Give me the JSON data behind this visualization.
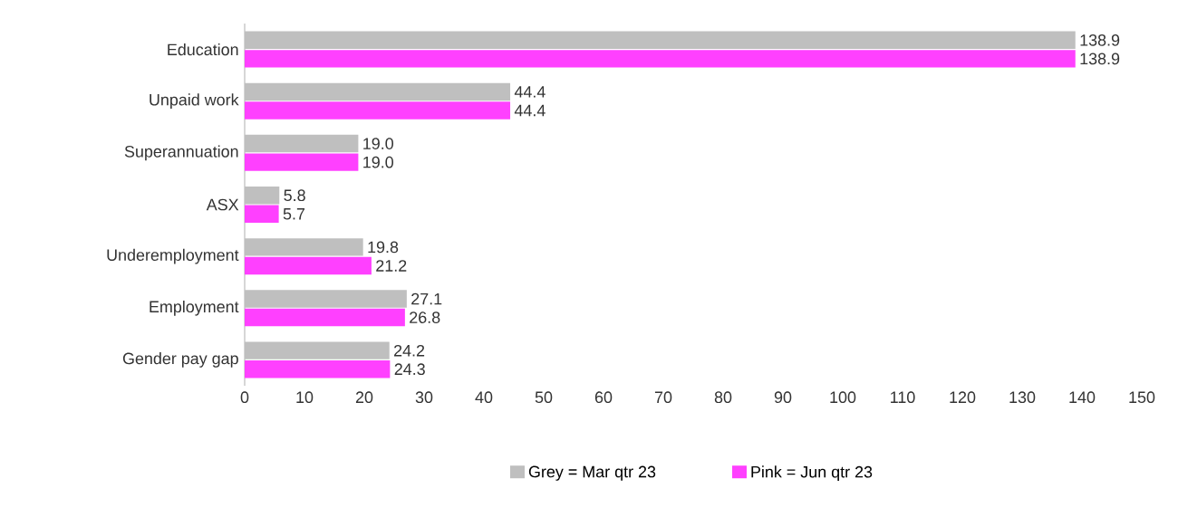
{
  "chart_data": {
    "type": "bar",
    "orientation": "horizontal",
    "categories": [
      "Education",
      "Unpaid work",
      "Superannuation",
      "ASX",
      "Underemployment",
      "Employment",
      "Gender pay gap"
    ],
    "series": [
      {
        "name": "Grey = Mar qtr 23",
        "color": "#bfbfbf",
        "values": [
          138.9,
          44.4,
          19.0,
          5.8,
          19.8,
          27.1,
          24.2
        ],
        "value_labels": [
          "138.9",
          "44.4",
          "19.0",
          "5.8",
          "19.8",
          "27.1",
          "24.2"
        ]
      },
      {
        "name": "Pink = Jun qtr 23",
        "color": "#ff40ff",
        "values": [
          138.9,
          44.4,
          19.0,
          5.7,
          21.2,
          26.8,
          24.3
        ],
        "value_labels": [
          "138.9",
          "44.4",
          "19.0",
          "5.7",
          "21.2",
          "26.8",
          "24.3"
        ]
      }
    ],
    "xlim": [
      0,
      150
    ],
    "xticks": [
      0,
      10,
      20,
      30,
      40,
      50,
      60,
      70,
      80,
      90,
      100,
      110,
      120,
      130,
      140,
      150
    ],
    "legend": "bottom"
  }
}
